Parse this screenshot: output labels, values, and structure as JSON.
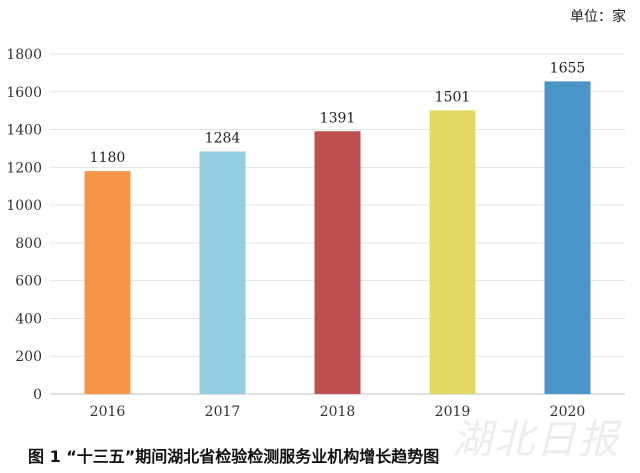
{
  "unit_label": "单位：家",
  "caption": "图 1  “十三五”期间湖北省检验检测服务业机构增长趋势图",
  "watermark": "湖北日报",
  "chart_data": {
    "type": "bar",
    "categories": [
      "2016",
      "2017",
      "2018",
      "2019",
      "2020"
    ],
    "values": [
      1180,
      1284,
      1391,
      1501,
      1655
    ],
    "colors": [
      "#F4954A",
      "#94CDE0",
      "#BE5150",
      "#E2D862",
      "#4A95C8"
    ],
    "ylim": [
      0,
      1800
    ],
    "yticks": [
      0,
      200,
      400,
      600,
      800,
      1000,
      1200,
      1400,
      1600,
      1800
    ],
    "grid": true,
    "title": "",
    "xlabel": "",
    "ylabel": ""
  }
}
